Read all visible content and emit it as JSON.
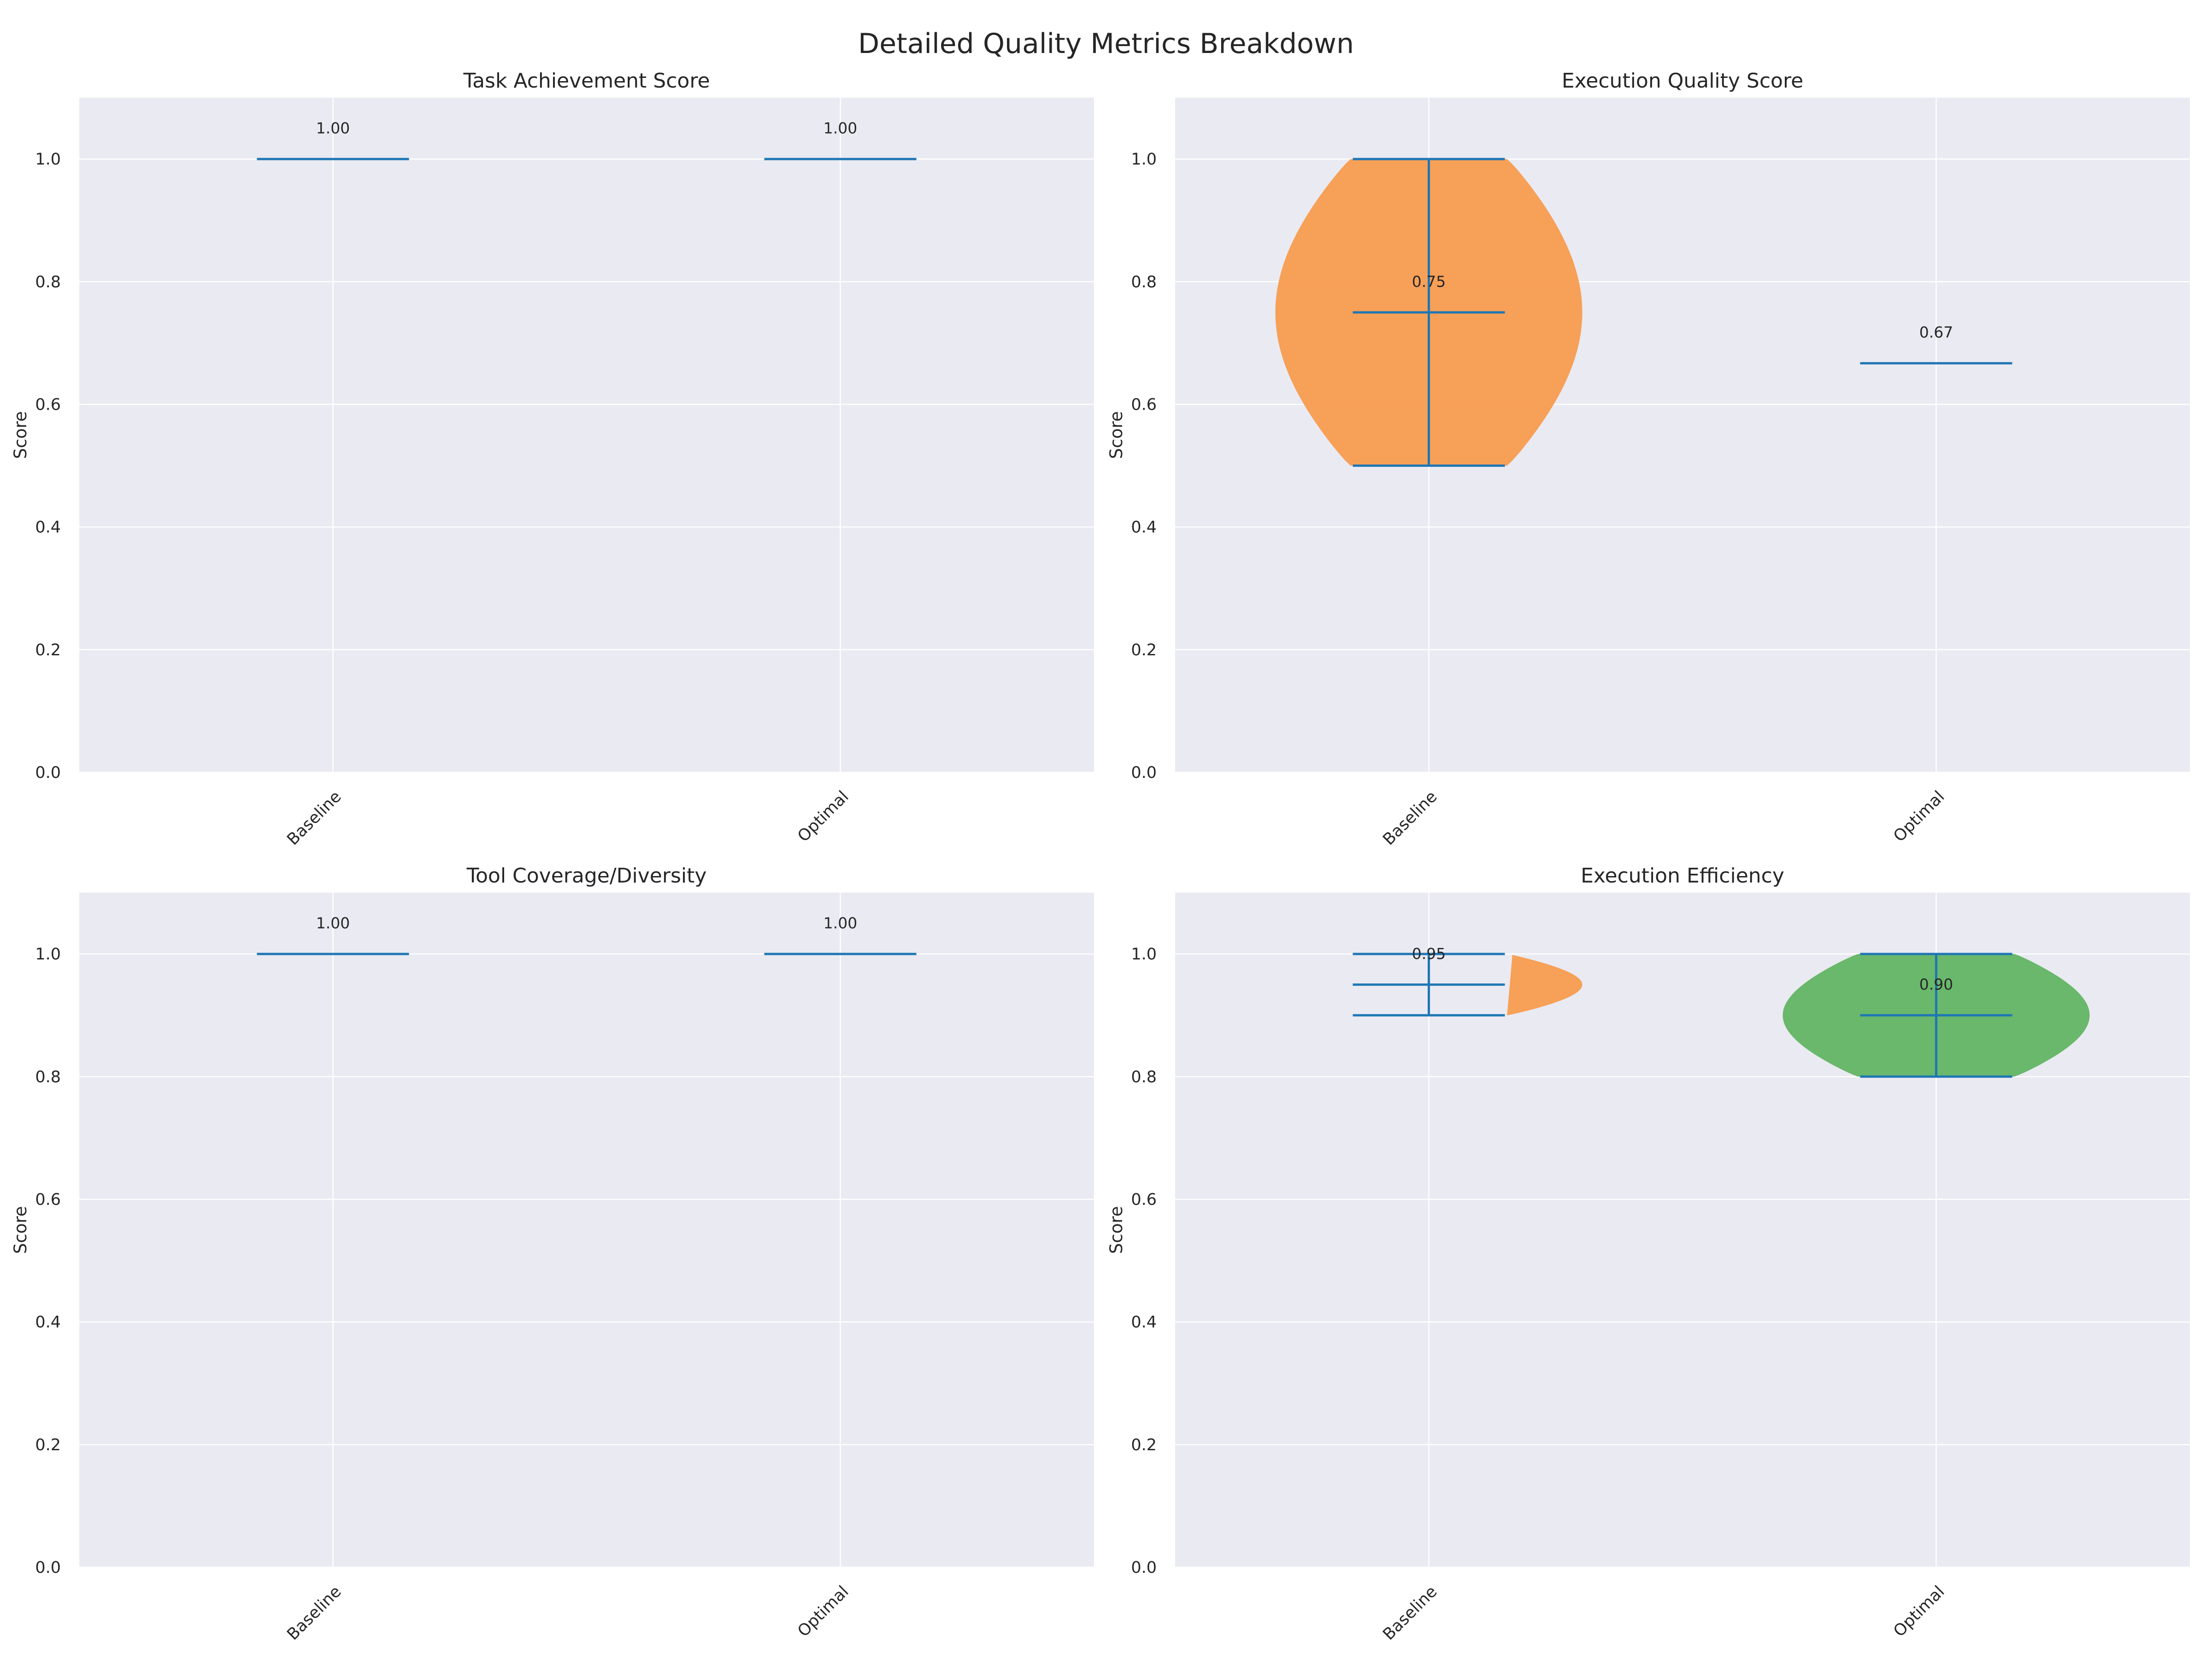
{
  "figure": {
    "title": "Detailed Quality Metrics Breakdown"
  },
  "colors": {
    "background": "#EAEAF2",
    "grid": "#FFFFFF",
    "stat_line": "#1F77B4",
    "baseline_fill": "#F89C4E",
    "optimal_fill": "#62B563"
  },
  "chart_data": [
    {
      "type": "violin",
      "title": "Task Achievement Score",
      "xlabel": "",
      "ylabel": "Score",
      "ylim": [
        0,
        1.1
      ],
      "yticks": [
        0.0,
        0.2,
        0.4,
        0.6,
        0.8,
        1.0
      ],
      "ytick_labels": [
        "0.0",
        "0.2",
        "0.4",
        "0.6",
        "0.8",
        "1.0"
      ],
      "grid": true,
      "categories": [
        "Baseline",
        "Optimal"
      ],
      "series": [
        {
          "min": 1.0,
          "max": 1.0,
          "mean": 1.0,
          "label": "1.00",
          "fill": "baseline_fill"
        },
        {
          "min": 1.0,
          "max": 1.0,
          "mean": 1.0,
          "label": "1.00",
          "fill": "optimal_fill"
        }
      ]
    },
    {
      "type": "violin",
      "title": "Execution Quality Score",
      "xlabel": "",
      "ylabel": "Score",
      "ylim": [
        0,
        1.1
      ],
      "yticks": [
        0.0,
        0.2,
        0.4,
        0.6,
        0.8,
        1.0
      ],
      "ytick_labels": [
        "0.0",
        "0.2",
        "0.4",
        "0.6",
        "0.8",
        "1.0"
      ],
      "grid": true,
      "categories": [
        "Baseline",
        "Optimal"
      ],
      "series": [
        {
          "min": 0.5,
          "max": 1.0,
          "mean": 0.75,
          "label": "0.75",
          "fill": "baseline_fill"
        },
        {
          "min": 0.667,
          "max": 0.667,
          "mean": 0.667,
          "label": "0.67",
          "fill": "optimal_fill"
        }
      ]
    },
    {
      "type": "violin",
      "title": "Tool Coverage/Diversity",
      "xlabel": "",
      "ylabel": "Score",
      "ylim": [
        0,
        1.1
      ],
      "yticks": [
        0.0,
        0.2,
        0.4,
        0.6,
        0.8,
        1.0
      ],
      "ytick_labels": [
        "0.0",
        "0.2",
        "0.4",
        "0.6",
        "0.8",
        "1.0"
      ],
      "grid": true,
      "categories": [
        "Baseline",
        "Optimal"
      ],
      "series": [
        {
          "min": 1.0,
          "max": 1.0,
          "mean": 1.0,
          "label": "1.00",
          "fill": "baseline_fill"
        },
        {
          "min": 1.0,
          "max": 1.0,
          "mean": 1.0,
          "label": "1.00",
          "fill": "optimal_fill"
        }
      ]
    },
    {
      "type": "violin",
      "title": "Execution Efficiency",
      "xlabel": "",
      "ylabel": "Score",
      "ylim": [
        0,
        1.1
      ],
      "yticks": [
        0.0,
        0.2,
        0.4,
        0.6,
        0.8,
        1.0
      ],
      "ytick_labels": [
        "0.0",
        "0.2",
        "0.4",
        "0.6",
        "0.8",
        "1.0"
      ],
      "grid": true,
      "categories": [
        "Baseline",
        "Optimal"
      ],
      "series": [
        {
          "min": 0.9,
          "max": 1.0,
          "mean": 0.95,
          "label": "0.95",
          "fill": "baseline_fill"
        },
        {
          "min": 0.8,
          "max": 1.0,
          "mean": 0.9,
          "label": "0.90",
          "fill": "optimal_fill"
        }
      ]
    }
  ]
}
